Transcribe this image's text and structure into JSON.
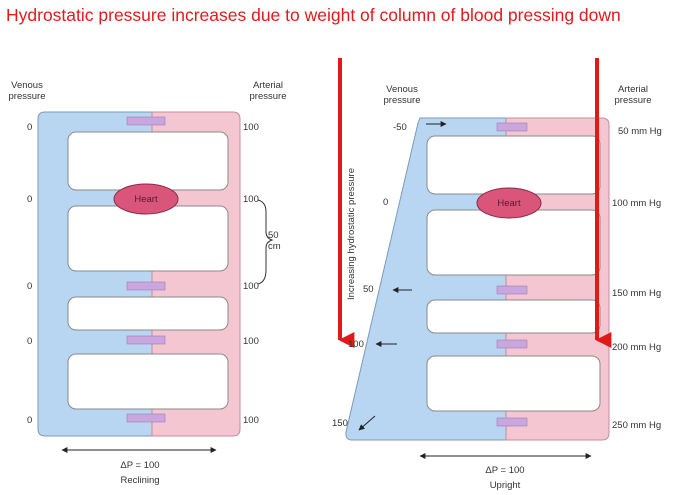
{
  "title": "Hydrostatic pressure increases due to weight of column of blood pressing down",
  "reclining": {
    "venous_heading_1": "Venous",
    "venous_heading_2": "pressure",
    "arterial_heading_1": "Arterial",
    "arterial_heading_2": "pressure",
    "venous_values": [
      "0",
      "0",
      "0",
      "0",
      "0"
    ],
    "arterial_values": [
      "100",
      "100",
      "100",
      "100",
      "100"
    ],
    "heart_label": "Heart",
    "height_label_1": "50",
    "height_label_2": "cm",
    "delta_label": "ΔP = 100",
    "posture_label": "Reclining"
  },
  "upright": {
    "venous_heading_1": "Venous",
    "venous_heading_2": "pressure",
    "arterial_heading_1": "Arterial",
    "arterial_heading_2": "pressure",
    "venous_values": [
      "-50",
      "0",
      "50",
      "100",
      "150"
    ],
    "arterial_values": [
      "50 mm Hg",
      "100 mm Hg",
      "150 mm Hg",
      "200 mm Hg",
      "250 mm Hg"
    ],
    "heart_label": "Heart",
    "gradient_label": "Increasing hydrostatic pressure",
    "delta_label": "ΔP = 100",
    "posture_label": "Upright"
  },
  "colors": {
    "title": "#e11b1b",
    "venous": "#b8d6f2",
    "venous_edge": "#6f8fb0",
    "arterial": "#f4c6d2",
    "arterial_edge": "#c88a9c",
    "capillary": "#c9a6dd",
    "heart": "#d9557a",
    "arrow_red": "#e01919"
  }
}
